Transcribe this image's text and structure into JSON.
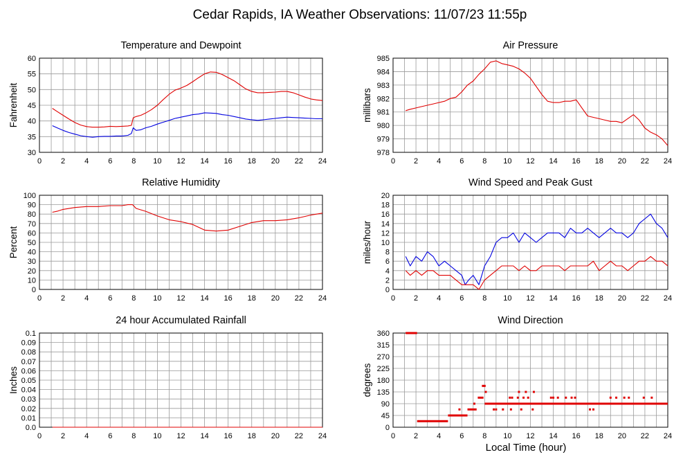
{
  "title": "Cedar Rapids, IA Weather Observations: 11/07/23 11:55p",
  "xlabel": "Local Time (hour)",
  "colors": {
    "red": "#e00000",
    "blue": "#0000e0",
    "grid": "#9a9a9a",
    "frame": "#000000"
  },
  "chart_data": [
    {
      "type": "line",
      "title": "Temperature and Dewpoint",
      "ylabel": "Fahrenheit",
      "xlim": [
        0,
        24
      ],
      "xticks": [
        2,
        4,
        6,
        8,
        10,
        12,
        14,
        16,
        18,
        20,
        22,
        24
      ],
      "ylim": [
        30,
        60
      ],
      "yticks": [
        30,
        35,
        40,
        45,
        50,
        55,
        60
      ],
      "series": [
        {
          "color": "#e00000",
          "x": [
            1.1,
            1.5,
            2,
            2.5,
            3,
            3.5,
            4,
            4.5,
            5,
            5.5,
            6,
            6.5,
            7,
            7.5,
            7.8,
            7.95,
            8.2,
            8.6,
            9,
            9.5,
            10,
            10.5,
            11,
            11.5,
            12,
            12.5,
            13,
            13.5,
            14,
            14.5,
            15,
            15.5,
            16,
            16.5,
            17,
            17.5,
            18,
            18.5,
            19,
            19.5,
            20,
            20.5,
            21,
            21.5,
            22,
            22.5,
            23,
            23.5,
            24
          ],
          "y": [
            44,
            43,
            41.8,
            40.6,
            39.5,
            38.7,
            38.2,
            38,
            38,
            38.1,
            38.3,
            38.2,
            38.3,
            38.4,
            38.6,
            41,
            41.4,
            41.8,
            42.5,
            43.6,
            45,
            46.8,
            48.5,
            49.8,
            50.5,
            51.3,
            52.5,
            53.8,
            55,
            55.6,
            55.5,
            54.8,
            53.8,
            52.8,
            51.5,
            50.2,
            49.4,
            49,
            49,
            49.1,
            49.2,
            49.4,
            49.4,
            49,
            48.3,
            47.6,
            47,
            46.7,
            46.5
          ]
        },
        {
          "color": "#0000e0",
          "x": [
            1.1,
            1.5,
            2,
            2.5,
            3,
            3.5,
            4,
            4.5,
            5,
            5.5,
            6,
            6.5,
            7,
            7.5,
            7.8,
            7.95,
            8.2,
            8.6,
            9,
            9.5,
            10,
            10.5,
            11,
            11.5,
            12,
            12.5,
            13,
            13.5,
            14,
            14.5,
            15,
            15.5,
            16,
            16.5,
            17,
            17.5,
            18,
            18.5,
            19,
            19.5,
            20,
            20.5,
            21,
            21.5,
            22,
            22.5,
            23,
            23.5,
            24
          ],
          "y": [
            38.5,
            37.8,
            37,
            36.3,
            35.8,
            35.3,
            35,
            34.8,
            35,
            35.1,
            35.1,
            35.2,
            35.2,
            35.4,
            36,
            37.8,
            37,
            37.2,
            37.8,
            38.3,
            39,
            39.6,
            40.2,
            40.8,
            41.2,
            41.6,
            42,
            42.2,
            42.6,
            42.5,
            42.4,
            42,
            41.8,
            41.4,
            41,
            40.6,
            40.4,
            40.2,
            40.4,
            40.6,
            40.8,
            41,
            41.2,
            41.1,
            41,
            40.9,
            40.8,
            40.7,
            40.7
          ]
        }
      ]
    },
    {
      "type": "line",
      "title": "Air Pressure",
      "ylabel": "millibars",
      "xlim": [
        0,
        24
      ],
      "xticks": [
        2,
        4,
        6,
        8,
        10,
        12,
        14,
        16,
        18,
        20,
        22,
        24
      ],
      "ylim": [
        978,
        985
      ],
      "yticks": [
        978,
        979,
        980,
        981,
        982,
        983,
        984,
        985
      ],
      "series": [
        {
          "color": "#e00000",
          "x": [
            1.1,
            1.5,
            2,
            2.5,
            3,
            3.5,
            4,
            4.5,
            5,
            5.5,
            6,
            6.5,
            7,
            7.5,
            8,
            8.5,
            9,
            9.5,
            10,
            10.5,
            11,
            11.5,
            12,
            12.5,
            13,
            13.5,
            14,
            14.5,
            15,
            15.5,
            16,
            16.5,
            17,
            17.5,
            18,
            18.5,
            19,
            19.5,
            20,
            20.5,
            21,
            21.5,
            22,
            22.5,
            23,
            23.5,
            24
          ],
          "y": [
            981.1,
            981.2,
            981.3,
            981.4,
            981.5,
            981.6,
            981.7,
            981.8,
            982,
            982.1,
            982.5,
            983,
            983.3,
            983.8,
            984.2,
            984.7,
            984.8,
            984.6,
            984.5,
            984.4,
            984.2,
            983.9,
            983.5,
            982.9,
            982.3,
            981.8,
            981.7,
            981.7,
            981.8,
            981.8,
            981.9,
            981.3,
            980.7,
            980.6,
            980.5,
            980.4,
            980.3,
            980.3,
            980.2,
            980.5,
            980.8,
            980.4,
            979.8,
            979.5,
            979.3,
            979,
            978.5
          ]
        }
      ]
    },
    {
      "type": "line",
      "title": "Relative Humidity",
      "ylabel": "Percent",
      "xlim": [
        0,
        24
      ],
      "xticks": [
        2,
        4,
        6,
        8,
        10,
        12,
        14,
        16,
        18,
        20,
        22,
        24
      ],
      "ylim": [
        0,
        100
      ],
      "yticks": [
        0,
        10,
        20,
        30,
        40,
        50,
        60,
        70,
        80,
        90,
        100
      ],
      "series": [
        {
          "color": "#e00000",
          "x": [
            1.1,
            1.5,
            2,
            3,
            4,
            5,
            6,
            7,
            7.5,
            7.9,
            8.2,
            9,
            10,
            11,
            12,
            13,
            14,
            15,
            16,
            17,
            18,
            19,
            20,
            21,
            22,
            23,
            24
          ],
          "y": [
            82,
            83,
            85,
            87,
            88,
            88,
            89,
            89,
            90,
            90,
            86,
            83,
            78,
            74,
            72,
            69,
            63,
            62,
            63,
            67,
            71,
            73,
            73,
            74,
            76,
            79,
            81
          ]
        }
      ]
    },
    {
      "type": "line",
      "title": "Wind Speed and Peak Gust",
      "ylabel": "miles/hour",
      "xlim": [
        0,
        24
      ],
      "xticks": [
        2,
        4,
        6,
        8,
        10,
        12,
        14,
        16,
        18,
        20,
        22,
        24
      ],
      "ylim": [
        0,
        20
      ],
      "yticks": [
        0,
        2,
        4,
        6,
        8,
        10,
        12,
        14,
        16,
        18,
        20
      ],
      "series": [
        {
          "color": "#0000e0",
          "x": [
            1.1,
            1.5,
            2,
            2.5,
            3,
            3.5,
            4,
            4.5,
            5,
            5.5,
            6,
            6.3,
            6.6,
            7,
            7.5,
            8,
            8.5,
            9,
            9.5,
            10,
            10.5,
            11,
            11.5,
            12,
            12.5,
            13,
            13.5,
            14,
            14.5,
            15,
            15.5,
            16,
            16.5,
            17,
            17.5,
            18,
            18.5,
            19,
            19.5,
            20,
            20.5,
            21,
            21.5,
            22,
            22.5,
            23,
            23.5,
            24
          ],
          "y": [
            7,
            5,
            7,
            6,
            8,
            7,
            5,
            6,
            5,
            4,
            3,
            1,
            2,
            3,
            1,
            5,
            7,
            10,
            11,
            11,
            12,
            10,
            12,
            11,
            10,
            11,
            12,
            12,
            12,
            11,
            13,
            12,
            12,
            13,
            12,
            11,
            12,
            13,
            12,
            12,
            11,
            12,
            14,
            15,
            16,
            14,
            13,
            11
          ]
        },
        {
          "color": "#e00000",
          "x": [
            1.1,
            1.5,
            2,
            2.5,
            3,
            3.5,
            4,
            4.5,
            5,
            5.5,
            6,
            6.3,
            6.6,
            7,
            7.5,
            8,
            8.5,
            9,
            9.5,
            10,
            10.5,
            11,
            11.5,
            12,
            12.5,
            13,
            13.5,
            14,
            14.5,
            15,
            15.5,
            16,
            16.5,
            17,
            17.5,
            18,
            18.5,
            19,
            19.5,
            20,
            20.5,
            21,
            21.5,
            22,
            22.5,
            23,
            23.5,
            24
          ],
          "y": [
            4,
            3,
            4,
            3,
            4,
            4,
            3,
            3,
            3,
            2,
            1,
            1,
            1,
            1,
            0,
            2,
            3,
            4,
            5,
            5,
            5,
            4,
            5,
            4,
            4,
            5,
            5,
            5,
            5,
            4,
            5,
            5,
            5,
            5,
            6,
            4,
            5,
            6,
            5,
            5,
            4,
            5,
            6,
            6,
            7,
            6,
            6,
            5
          ]
        }
      ]
    },
    {
      "type": "line",
      "title": "24 hour Accumulated Rainfall",
      "ylabel": "Inches",
      "xlim": [
        0,
        24
      ],
      "xticks": [
        2,
        4,
        6,
        8,
        10,
        12,
        14,
        16,
        18,
        20,
        22,
        24
      ],
      "ylim": [
        0,
        0.1
      ],
      "yticks": [
        0.0,
        0.01,
        0.02,
        0.03,
        0.04,
        0.05,
        0.06,
        0.07,
        0.08,
        0.09,
        0.1
      ],
      "ytick_labels": [
        "0.0",
        "0.01",
        "0.02",
        "0.03",
        "0.04",
        "0.05",
        "0.06",
        "0.07",
        "0.08",
        "0.09",
        "0.1"
      ],
      "series": [
        {
          "color": "#e00000",
          "x": [
            1.1,
            24
          ],
          "y": [
            0,
            0
          ]
        }
      ]
    },
    {
      "type": "scatter",
      "title": "Wind Direction",
      "ylabel": "degrees",
      "xlabel": "Local Time (hour)",
      "xlim": [
        0,
        24
      ],
      "xticks": [
        2,
        4,
        6,
        8,
        10,
        12,
        14,
        16,
        18,
        20,
        22,
        24
      ],
      "ylim": [
        0,
        360
      ],
      "yticks": [
        0,
        45,
        90,
        135,
        180,
        225,
        270,
        315,
        360
      ],
      "series": [
        {
          "color": "#e00000",
          "segments": [
            {
              "x": [
                1.1,
                2.1
              ],
              "y": 360
            },
            {
              "x": [
                2.1,
                4.8
              ],
              "y": 23
            },
            {
              "x": [
                4.8,
                6.5
              ],
              "y": 45
            },
            {
              "x": [
                6.5,
                7.3
              ],
              "y": 68
            },
            {
              "x": [
                7.4,
                7.9
              ],
              "y": 113
            },
            {
              "x": [
                8.0,
                24.0
              ],
              "y": 90
            }
          ],
          "points": [
            {
              "x": 7.85,
              "y": 158
            },
            {
              "x": 8.0,
              "y": 158
            },
            {
              "x": 8.1,
              "y": 135
            },
            {
              "x": 7.1,
              "y": 90
            },
            {
              "x": 5.8,
              "y": 68
            },
            {
              "x": 8.8,
              "y": 68
            },
            {
              "x": 9.0,
              "y": 68
            },
            {
              "x": 9.6,
              "y": 68
            },
            {
              "x": 10.3,
              "y": 68
            },
            {
              "x": 11.2,
              "y": 68
            },
            {
              "x": 12.2,
              "y": 68
            },
            {
              "x": 17.2,
              "y": 68
            },
            {
              "x": 17.5,
              "y": 68
            },
            {
              "x": 10.2,
              "y": 113
            },
            {
              "x": 10.4,
              "y": 113
            },
            {
              "x": 10.9,
              "y": 113
            },
            {
              "x": 11.4,
              "y": 113
            },
            {
              "x": 11.8,
              "y": 113
            },
            {
              "x": 13.8,
              "y": 113
            },
            {
              "x": 14.0,
              "y": 113
            },
            {
              "x": 14.4,
              "y": 113
            },
            {
              "x": 15.1,
              "y": 113
            },
            {
              "x": 15.6,
              "y": 113
            },
            {
              "x": 15.9,
              "y": 113
            },
            {
              "x": 19.0,
              "y": 113
            },
            {
              "x": 19.5,
              "y": 113
            },
            {
              "x": 20.2,
              "y": 113
            },
            {
              "x": 20.6,
              "y": 113
            },
            {
              "x": 21.9,
              "y": 113
            },
            {
              "x": 22.6,
              "y": 113
            },
            {
              "x": 11.0,
              "y": 135
            },
            {
              "x": 11.6,
              "y": 135
            },
            {
              "x": 12.3,
              "y": 135
            }
          ]
        }
      ]
    }
  ]
}
